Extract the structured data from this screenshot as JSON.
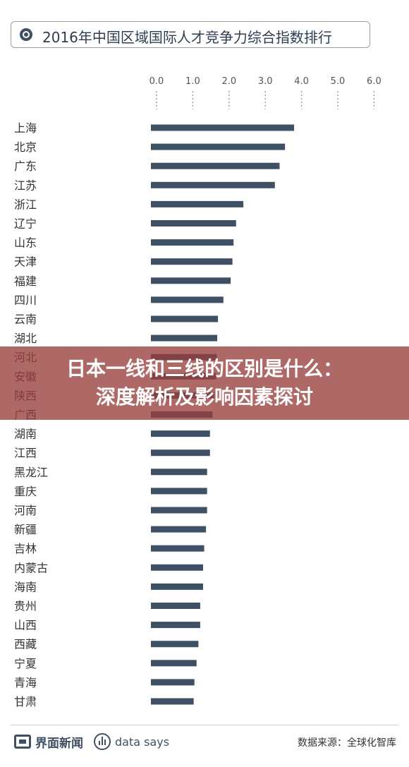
{
  "title": "2016年中国区域国际人才竞争力综合指数排行",
  "overlay": {
    "line1": "日本一线和三线的区别是什么：",
    "line2": "深度解析及影响因素探讨"
  },
  "footer": {
    "brand": "界面新闻",
    "datasays": "data says",
    "source": "数据来源：全球化智库"
  },
  "colors": {
    "bar": "#3e5064",
    "overlay": "#973f3c"
  },
  "chart_data": {
    "type": "bar",
    "orientation": "horizontal",
    "title": "2016年中国区域国际人才竞争力综合指数排行",
    "xlim": [
      0,
      6
    ],
    "ticks": [
      "0.0",
      "1.0",
      "2.0",
      "3.0",
      "4.0",
      "5.0",
      "6.0"
    ],
    "categories": [
      "上海",
      "北京",
      "广东",
      "江苏",
      "浙江",
      "辽宁",
      "山东",
      "天津",
      "福建",
      "四川",
      "云南",
      "湖北",
      "河北",
      "安徽",
      "陕西",
      "广西",
      "湖南",
      "江西",
      "黑龙江",
      "重庆",
      "河南",
      "新疆",
      "吉林",
      "内蒙古",
      "海南",
      "贵州",
      "山西",
      "西藏",
      "宁夏",
      "青海",
      "甘肃"
    ],
    "values": [
      3.95,
      3.7,
      3.55,
      3.42,
      2.55,
      2.35,
      2.28,
      2.25,
      2.2,
      2.0,
      1.85,
      1.83,
      1.82,
      1.8,
      1.75,
      1.7,
      1.63,
      1.63,
      1.55,
      1.55,
      1.55,
      1.52,
      1.47,
      1.44,
      1.44,
      1.36,
      1.36,
      1.31,
      1.26,
      1.2,
      1.18
    ]
  }
}
